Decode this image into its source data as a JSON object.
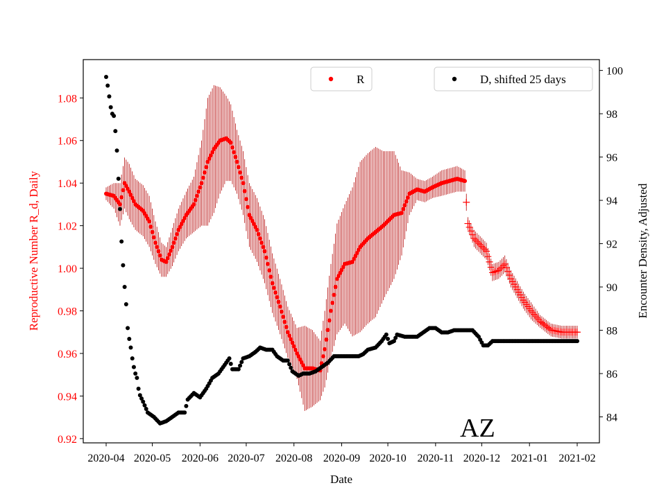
{
  "chart_data": {
    "type": "scatter",
    "xlabel": "Date",
    "ylabel_left": "Reproductive Number R_d, Daily",
    "ylabel_right": "Encounter Density, Adjusted",
    "annotation": "AZ",
    "x_range": [
      "2020-04-01",
      "2021-02-01"
    ],
    "x_ticks": [
      "2020-04",
      "2020-05",
      "2020-06",
      "2020-07",
      "2020-08",
      "2020-09",
      "2020-10",
      "2020-11",
      "2020-12",
      "2021-01",
      "2021-02"
    ],
    "ylim_left": [
      0.918,
      1.098
    ],
    "yticks_left": [
      "0.92",
      "0.94",
      "0.96",
      "0.98",
      "1.00",
      "1.02",
      "1.04",
      "1.06",
      "1.08"
    ],
    "ylim_right": [
      82.8,
      100.5
    ],
    "yticks_right": [
      "84",
      "86",
      "88",
      "90",
      "92",
      "94",
      "96",
      "98",
      "100"
    ],
    "legend": {
      "R": {
        "label": "R",
        "color": "#ff0000",
        "placement": "top-center"
      },
      "D": {
        "label": "D, shifted 25 days",
        "color": "#000000",
        "placement": "top-right"
      }
    },
    "colors": {
      "R": "#ff0000",
      "D": "#000000",
      "errorbar": "#b30000"
    },
    "series": [
      {
        "name": "R",
        "axis": "left",
        "marker": "dot, then plus after 2020-11-20",
        "points": [
          [
            "2020-04-01",
            1.035,
            0.003
          ],
          [
            "2020-04-06",
            1.034,
            0.006
          ],
          [
            "2020-04-10",
            1.03,
            0.01
          ],
          [
            "2020-04-13",
            1.04,
            0.012
          ],
          [
            "2020-04-16",
            1.036,
            0.013
          ],
          [
            "2020-04-20",
            1.03,
            0.012
          ],
          [
            "2020-04-25",
            1.027,
            0.012
          ],
          [
            "2020-04-29",
            1.022,
            0.012
          ],
          [
            "2020-05-03",
            1.012,
            0.01
          ],
          [
            "2020-05-07",
            1.004,
            0.008
          ],
          [
            "2020-05-10",
            1.003,
            0.007
          ],
          [
            "2020-05-14",
            1.01,
            0.009
          ],
          [
            "2020-05-18",
            1.018,
            0.01
          ],
          [
            "2020-05-23",
            1.025,
            0.011
          ],
          [
            "2020-05-28",
            1.03,
            0.013
          ],
          [
            "2020-06-02",
            1.04,
            0.02
          ],
          [
            "2020-06-06",
            1.05,
            0.03
          ],
          [
            "2020-06-10",
            1.056,
            0.03
          ],
          [
            "2020-06-14",
            1.06,
            0.025
          ],
          [
            "2020-06-18",
            1.061,
            0.02
          ],
          [
            "2020-06-21",
            1.059,
            0.018
          ],
          [
            "2020-06-25",
            1.05,
            0.015
          ],
          [
            "2020-06-29",
            1.04,
            0.015
          ],
          [
            "2020-07-03",
            1.025,
            0.015
          ],
          [
            "2020-07-08",
            1.018,
            0.015
          ],
          [
            "2020-07-13",
            1.008,
            0.015
          ],
          [
            "2020-07-18",
            0.993,
            0.014
          ],
          [
            "2020-07-23",
            0.982,
            0.013
          ],
          [
            "2020-07-28",
            0.97,
            0.012
          ],
          [
            "2020-08-03",
            0.96,
            0.012
          ],
          [
            "2020-08-08",
            0.953,
            0.02
          ],
          [
            "2020-08-13",
            0.953,
            0.018
          ],
          [
            "2020-08-18",
            0.952,
            0.014
          ],
          [
            "2020-08-21",
            0.962,
            0.018
          ],
          [
            "2020-08-25",
            0.98,
            0.022
          ],
          [
            "2020-08-29",
            0.995,
            0.026
          ],
          [
            "2020-09-03",
            1.002,
            0.028
          ],
          [
            "2020-09-08",
            1.003,
            0.035
          ],
          [
            "2020-09-13",
            1.01,
            0.04
          ],
          [
            "2020-09-18",
            1.014,
            0.04
          ],
          [
            "2020-09-23",
            1.017,
            0.04
          ],
          [
            "2020-09-28",
            1.02,
            0.035
          ],
          [
            "2020-10-05",
            1.025,
            0.03
          ],
          [
            "2020-10-10",
            1.026,
            0.02
          ],
          [
            "2020-10-15",
            1.035,
            0.01
          ],
          [
            "2020-10-20",
            1.037,
            0.005
          ],
          [
            "2020-10-25",
            1.036,
            0.005
          ],
          [
            "2020-10-30",
            1.038,
            0.005
          ],
          [
            "2020-11-05",
            1.04,
            0.006
          ],
          [
            "2020-11-10",
            1.041,
            0.006
          ],
          [
            "2020-11-15",
            1.042,
            0.006
          ],
          [
            "2020-11-20",
            1.041,
            0.005
          ],
          [
            "2020-11-22",
            1.021,
            0.003
          ],
          [
            "2020-11-26",
            1.014,
            0.004
          ],
          [
            "2020-11-30",
            1.011,
            0.004
          ],
          [
            "2020-12-04",
            1.008,
            0.004
          ],
          [
            "2020-12-08",
            0.998,
            0.004
          ],
          [
            "2020-12-12",
            0.999,
            0.004
          ],
          [
            "2020-12-16",
            1.002,
            0.004
          ],
          [
            "2020-12-20",
            0.995,
            0.004
          ],
          [
            "2020-12-24",
            0.99,
            0.004
          ],
          [
            "2020-12-28",
            0.985,
            0.004
          ],
          [
            "2021-01-02",
            0.98,
            0.004
          ],
          [
            "2021-01-08",
            0.975,
            0.003
          ],
          [
            "2021-01-15",
            0.971,
            0.003
          ],
          [
            "2021-01-22",
            0.97,
            0.003
          ],
          [
            "2021-02-01",
            0.97,
            0.003
          ]
        ]
      },
      {
        "name": "D, shifted 25 days",
        "axis": "right",
        "marker": "dot",
        "points": [
          [
            "2020-04-01",
            99.7
          ],
          [
            "2020-04-02",
            99.3
          ],
          [
            "2020-04-03",
            98.8
          ],
          [
            "2020-04-04",
            98.3
          ],
          [
            "2020-04-05",
            98.0
          ],
          [
            "2020-04-06",
            97.9
          ],
          [
            "2020-04-07",
            97.2
          ],
          [
            "2020-04-08",
            96.3
          ],
          [
            "2020-04-09",
            95.0
          ],
          [
            "2020-04-10",
            93.6
          ],
          [
            "2020-04-11",
            92.1
          ],
          [
            "2020-04-12",
            91.0
          ],
          [
            "2020-04-13",
            90.0
          ],
          [
            "2020-04-14",
            89.2
          ],
          [
            "2020-04-15",
            88.1
          ],
          [
            "2020-04-16",
            87.6
          ],
          [
            "2020-04-17",
            87.2
          ],
          [
            "2020-04-18",
            86.7
          ],
          [
            "2020-04-19",
            86.3
          ],
          [
            "2020-04-20",
            86.0
          ],
          [
            "2020-04-21",
            85.8
          ],
          [
            "2020-04-22",
            85.3
          ],
          [
            "2020-04-23",
            85.0
          ],
          [
            "2020-04-25",
            84.7
          ],
          [
            "2020-04-28",
            84.2
          ],
          [
            "2020-05-02",
            84.0
          ],
          [
            "2020-05-06",
            83.7
          ],
          [
            "2020-05-10",
            83.8
          ],
          [
            "2020-05-14",
            84.0
          ],
          [
            "2020-05-18",
            84.2
          ],
          [
            "2020-05-22",
            84.2
          ],
          [
            "2020-05-24",
            84.8
          ],
          [
            "2020-05-28",
            85.1
          ],
          [
            "2020-06-01",
            84.9
          ],
          [
            "2020-06-05",
            85.3
          ],
          [
            "2020-06-09",
            85.8
          ],
          [
            "2020-06-13",
            86.0
          ],
          [
            "2020-06-17",
            86.4
          ],
          [
            "2020-06-20",
            86.7
          ],
          [
            "2020-06-22",
            86.2
          ],
          [
            "2020-06-26",
            86.2
          ],
          [
            "2020-06-29",
            86.7
          ],
          [
            "2020-07-03",
            86.8
          ],
          [
            "2020-07-07",
            87.0
          ],
          [
            "2020-07-10",
            87.2
          ],
          [
            "2020-07-14",
            87.1
          ],
          [
            "2020-07-18",
            87.1
          ],
          [
            "2020-07-21",
            86.8
          ],
          [
            "2020-07-25",
            86.6
          ],
          [
            "2020-07-28",
            86.6
          ],
          [
            "2020-07-31",
            86.1
          ],
          [
            "2020-08-04",
            85.9
          ],
          [
            "2020-08-07",
            86.0
          ],
          [
            "2020-08-11",
            86.0
          ],
          [
            "2020-08-15",
            86.1
          ],
          [
            "2020-08-19",
            86.3
          ],
          [
            "2020-08-23",
            86.5
          ],
          [
            "2020-08-27",
            86.8
          ],
          [
            "2020-09-01",
            86.8
          ],
          [
            "2020-09-07",
            86.8
          ],
          [
            "2020-09-12",
            86.8
          ],
          [
            "2020-09-15",
            86.9
          ],
          [
            "2020-09-18",
            87.1
          ],
          [
            "2020-09-23",
            87.2
          ],
          [
            "2020-09-27",
            87.5
          ],
          [
            "2020-09-30",
            87.8
          ],
          [
            "2020-10-02",
            87.4
          ],
          [
            "2020-10-05",
            87.5
          ],
          [
            "2020-10-07",
            87.8
          ],
          [
            "2020-10-12",
            87.7
          ],
          [
            "2020-10-16",
            87.7
          ],
          [
            "2020-10-20",
            87.7
          ],
          [
            "2020-10-24",
            87.9
          ],
          [
            "2020-10-28",
            88.1
          ],
          [
            "2020-11-01",
            88.1
          ],
          [
            "2020-11-05",
            87.9
          ],
          [
            "2020-11-09",
            87.9
          ],
          [
            "2020-11-13",
            88.0
          ],
          [
            "2020-11-17",
            88.0
          ],
          [
            "2020-11-21",
            88.0
          ],
          [
            "2020-11-25",
            88.0
          ],
          [
            "2020-11-29",
            87.7
          ],
          [
            "2020-12-02",
            87.3
          ],
          [
            "2020-12-05",
            87.3
          ],
          [
            "2020-12-08",
            87.5
          ],
          [
            "2020-12-15",
            87.5
          ],
          [
            "2020-12-22",
            87.5
          ],
          [
            "2020-12-31",
            87.5
          ],
          [
            "2021-01-10",
            87.5
          ],
          [
            "2021-01-20",
            87.5
          ],
          [
            "2021-02-01",
            87.5
          ]
        ]
      }
    ]
  }
}
